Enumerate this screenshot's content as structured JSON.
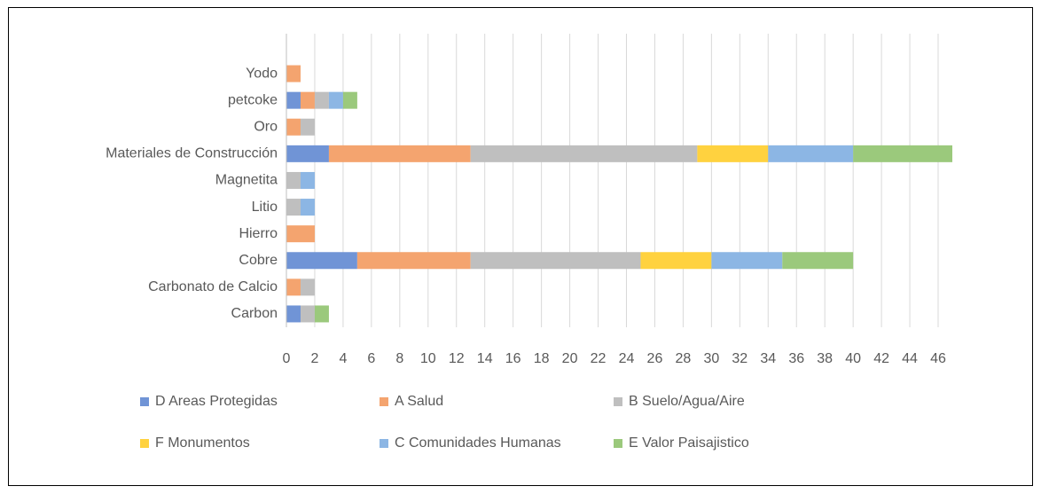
{
  "chart_data": {
    "type": "stacked-bar-horizontal",
    "categories": [
      "Carbon",
      "Carbonato de Calcio",
      "Cobre",
      "Hierro",
      "Litio",
      "Magnetita",
      "Materiales de Construcción",
      "Oro",
      "petcoke",
      "Yodo"
    ],
    "series": [
      {
        "name": "D Areas Protegidas",
        "color": "#7094d6",
        "values": [
          1,
          0,
          5,
          0,
          0,
          0,
          3,
          0,
          1,
          0
        ]
      },
      {
        "name": "A Salud",
        "color": "#f4a46f",
        "values": [
          0,
          1,
          8,
          2,
          0,
          0,
          10,
          1,
          1,
          1
        ]
      },
      {
        "name": "B Suelo/Agua/Aire",
        "color": "#bfbfbf",
        "values": [
          1,
          1,
          12,
          0,
          1,
          1,
          16,
          1,
          1,
          0
        ]
      },
      {
        "name": "F Monumentos",
        "color": "#ffd23f",
        "values": [
          0,
          0,
          5,
          0,
          0,
          0,
          5,
          0,
          0,
          0
        ]
      },
      {
        "name": "C Comunidades Humanas",
        "color": "#8cb6e4",
        "values": [
          0,
          0,
          5,
          0,
          1,
          1,
          6,
          0,
          1,
          0
        ]
      },
      {
        "name": "E Valor Paisajistico",
        "color": "#9bc97c",
        "values": [
          1,
          0,
          5,
          0,
          0,
          0,
          7,
          0,
          1,
          0
        ]
      }
    ],
    "xlim": [
      0,
      47
    ],
    "xticks": [
      0,
      2,
      4,
      6,
      8,
      10,
      12,
      14,
      16,
      18,
      20,
      22,
      24,
      26,
      28,
      30,
      32,
      34,
      36,
      38,
      40,
      42,
      44,
      46
    ],
    "grid": true
  }
}
